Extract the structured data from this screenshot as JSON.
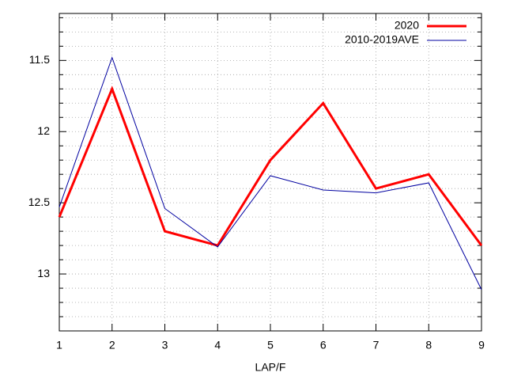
{
  "chart_data": {
    "type": "line",
    "x_label": "LAP/F",
    "x": [
      1,
      2,
      3,
      4,
      5,
      6,
      7,
      8,
      9
    ],
    "xlim": [
      1,
      9
    ],
    "xticks": [
      1,
      2,
      3,
      4,
      5,
      6,
      7,
      8,
      9
    ],
    "ylim": [
      13.4,
      11.17
    ],
    "y_reversed": true,
    "yticks": [
      11.5,
      12,
      12.5,
      13
    ],
    "yminorticks": [
      11.2,
      11.3,
      11.4,
      11.6,
      11.7,
      11.8,
      11.9,
      12.1,
      12.2,
      12.3,
      12.4,
      12.6,
      12.7,
      12.8,
      12.9,
      13.1,
      13.2,
      13.3
    ],
    "grid": true,
    "legend": "top-right",
    "series": [
      {
        "name": "2020",
        "color": "#ff0000",
        "width": 3,
        "values": [
          12.6,
          11.7,
          12.7,
          12.8,
          12.2,
          11.8,
          12.4,
          12.3,
          12.8
        ]
      },
      {
        "name": "2010-2019AVE",
        "color": "#0000a0",
        "width": 1,
        "values": [
          12.53,
          11.48,
          12.54,
          12.81,
          12.31,
          12.41,
          12.43,
          12.36,
          13.11
        ]
      }
    ]
  }
}
